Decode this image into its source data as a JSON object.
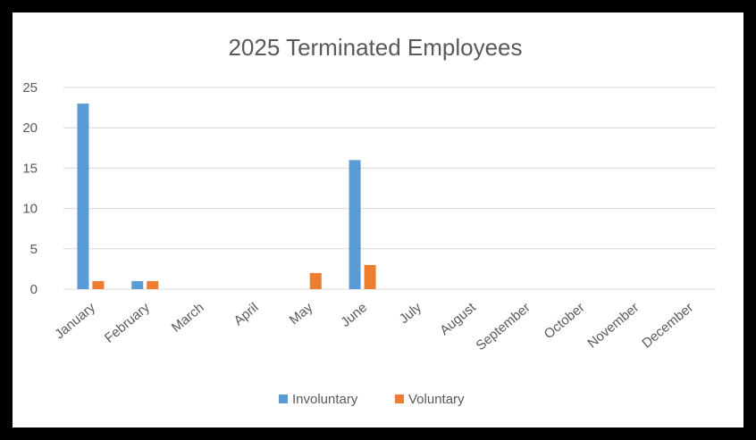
{
  "chart_data": {
    "type": "bar",
    "title": "2025 Terminated Employees",
    "categories": [
      "January",
      "February",
      "March",
      "April",
      "May",
      "June",
      "July",
      "August",
      "September",
      "October",
      "November",
      "December"
    ],
    "series": [
      {
        "name": "Involuntary",
        "color": "#5b9bd5",
        "values": [
          23,
          1,
          0,
          0,
          0,
          16,
          0,
          0,
          0,
          0,
          0,
          0
        ]
      },
      {
        "name": "Voluntary",
        "color": "#ed7d31",
        "values": [
          1,
          1,
          0,
          0,
          2,
          3,
          0,
          0,
          0,
          0,
          0,
          0
        ]
      }
    ],
    "yticks": [
      "0",
      "5",
      "10",
      "15",
      "20",
      "25"
    ],
    "ylim": [
      0,
      25
    ],
    "grid": true,
    "legend": "bottom"
  }
}
